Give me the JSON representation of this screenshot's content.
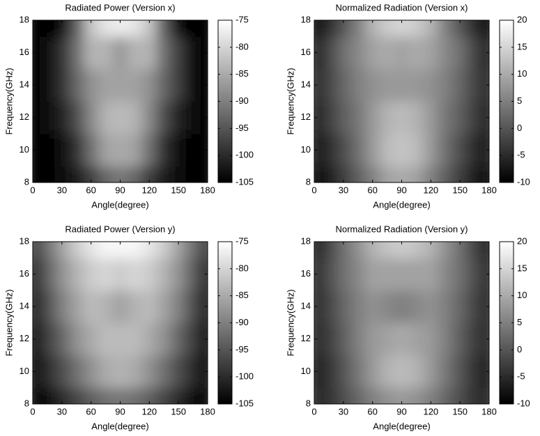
{
  "chart_data": [
    {
      "type": "heatmap",
      "title": "Radiated Power (Version x)",
      "xlabel": "Angle(degree)",
      "ylabel": "Frequency(GHz)",
      "x": [
        0,
        15,
        30,
        45,
        60,
        75,
        90,
        105,
        120,
        135,
        150,
        165,
        180
      ],
      "y": [
        8,
        10,
        12,
        14,
        16,
        18
      ],
      "z": [
        [
          -105,
          -105,
          -104,
          -102,
          -98,
          -93,
          -91,
          -93,
          -98,
          -102,
          -104,
          -105,
          -105
        ],
        [
          -105,
          -105,
          -103,
          -99,
          -92,
          -86,
          -85,
          -86,
          -92,
          -99,
          -103,
          -105,
          -105
        ],
        [
          -105,
          -104,
          -101,
          -96,
          -89,
          -84,
          -83,
          -84,
          -89,
          -96,
          -101,
          -104,
          -105
        ],
        [
          -105,
          -103,
          -99,
          -93,
          -88,
          -86,
          -86,
          -86,
          -88,
          -93,
          -98,
          -103,
          -105
        ],
        [
          -105,
          -103,
          -99,
          -92,
          -84,
          -84,
          -87,
          -84,
          -84,
          -92,
          -98,
          -103,
          -105
        ],
        [
          -105,
          -105,
          -103,
          -94,
          -82,
          -78,
          -77,
          -78,
          -82,
          -94,
          -103,
          -105,
          -105
        ]
      ],
      "xlim": [
        0,
        180
      ],
      "ylim": [
        8,
        18
      ],
      "xticks": [
        0,
        30,
        60,
        90,
        120,
        150,
        180
      ],
      "yticks": [
        8,
        10,
        12,
        14,
        16,
        18
      ],
      "clim": [
        -105,
        -75
      ],
      "cticks": [
        -105,
        -100,
        -95,
        -90,
        -85,
        -80,
        -75
      ],
      "colormap": "gray"
    },
    {
      "type": "heatmap",
      "title": "Normalized Radiation (Version x)",
      "xlabel": "Angle(degree)",
      "ylabel": "Frequency(GHz)",
      "x": [
        0,
        15,
        30,
        45,
        60,
        75,
        90,
        105,
        120,
        135,
        150,
        165,
        180
      ],
      "y": [
        8,
        10,
        12,
        14,
        16,
        18
      ],
      "z": [
        [
          -8,
          -7,
          -3,
          1,
          5,
          9,
          10,
          9,
          5,
          1,
          -3,
          -7,
          -8
        ],
        [
          -7,
          -5,
          -1,
          3,
          8,
          12,
          13,
          12,
          8,
          3,
          -1,
          -5,
          -7
        ],
        [
          -6,
          -3,
          1,
          4,
          8,
          11,
          12,
          11,
          8,
          4,
          1,
          -3,
          -6
        ],
        [
          -5,
          -2,
          2,
          5,
          7,
          8,
          8,
          8,
          7,
          5,
          2,
          -2,
          -5
        ],
        [
          -6,
          -2,
          3,
          6,
          9,
          10,
          9,
          10,
          9,
          6,
          3,
          -2,
          -6
        ],
        [
          -8,
          -5,
          0,
          5,
          11,
          14,
          15,
          14,
          11,
          5,
          0,
          -5,
          -8
        ]
      ],
      "xlim": [
        0,
        180
      ],
      "ylim": [
        8,
        18
      ],
      "xticks": [
        0,
        30,
        60,
        90,
        120,
        150,
        180
      ],
      "yticks": [
        8,
        10,
        12,
        14,
        16,
        18
      ],
      "clim": [
        -10,
        20
      ],
      "cticks": [
        -10,
        -5,
        0,
        5,
        10,
        15,
        20
      ],
      "colormap": "gray"
    },
    {
      "type": "heatmap",
      "title": "Radiated Power (Version y)",
      "xlabel": "Angle(degree)",
      "ylabel": "Frequency(GHz)",
      "x": [
        0,
        15,
        30,
        45,
        60,
        75,
        90,
        105,
        120,
        135,
        150,
        165,
        180
      ],
      "y": [
        8,
        10,
        12,
        14,
        16,
        18
      ],
      "z": [
        [
          -104,
          -103,
          -100,
          -97,
          -94,
          -92,
          -91,
          -92,
          -94,
          -97,
          -100,
          -103,
          -104
        ],
        [
          -103,
          -100,
          -96,
          -92,
          -88,
          -85,
          -84,
          -85,
          -88,
          -92,
          -96,
          -100,
          -103
        ],
        [
          -103,
          -98,
          -93,
          -88,
          -85,
          -83,
          -83,
          -83,
          -85,
          -88,
          -93,
          -98,
          -103
        ],
        [
          -102,
          -96,
          -90,
          -86,
          -83,
          -84,
          -86,
          -84,
          -83,
          -86,
          -90,
          -96,
          -102
        ],
        [
          -101,
          -94,
          -88,
          -84,
          -81,
          -80,
          -81,
          -80,
          -81,
          -84,
          -88,
          -94,
          -101
        ],
        [
          -98,
          -92,
          -86,
          -81,
          -78,
          -76,
          -76,
          -76,
          -78,
          -81,
          -86,
          -92,
          -98
        ]
      ],
      "xlim": [
        0,
        180
      ],
      "ylim": [
        8,
        18
      ],
      "xticks": [
        0,
        30,
        60,
        90,
        120,
        150,
        180
      ],
      "yticks": [
        8,
        10,
        12,
        14,
        16,
        18
      ],
      "clim": [
        -105,
        -75
      ],
      "cticks": [
        -105,
        -100,
        -95,
        -90,
        -85,
        -80,
        -75
      ],
      "colormap": "gray"
    },
    {
      "type": "heatmap",
      "title": "Normalized Radiation (Version y)",
      "xlabel": "Angle(degree)",
      "ylabel": "Frequency(GHz)",
      "x": [
        0,
        15,
        30,
        45,
        60,
        75,
        90,
        105,
        120,
        135,
        150,
        165,
        180
      ],
      "y": [
        8,
        10,
        12,
        14,
        16,
        18
      ],
      "z": [
        [
          -5,
          -4,
          -1,
          2,
          5,
          7,
          8,
          7,
          5,
          2,
          -1,
          -4,
          -5
        ],
        [
          -6,
          -4,
          0,
          4,
          8,
          11,
          12,
          11,
          8,
          4,
          0,
          -4,
          -6
        ],
        [
          -5,
          -3,
          1,
          5,
          8,
          9,
          10,
          9,
          8,
          5,
          1,
          -3,
          -5
        ],
        [
          -5,
          -2,
          2,
          5,
          7,
          6,
          5,
          6,
          7,
          5,
          2,
          -2,
          -5
        ],
        [
          -5,
          -1,
          3,
          6,
          9,
          9,
          9,
          9,
          9,
          6,
          3,
          -1,
          -5
        ],
        [
          -6,
          -2,
          3,
          7,
          11,
          13,
          14,
          13,
          11,
          7,
          3,
          -2,
          -6
        ]
      ],
      "xlim": [
        0,
        180
      ],
      "ylim": [
        8,
        18
      ],
      "xticks": [
        0,
        30,
        60,
        90,
        120,
        150,
        180
      ],
      "yticks": [
        8,
        10,
        12,
        14,
        16,
        18
      ],
      "clim": [
        -10,
        20
      ],
      "cticks": [
        -10,
        -5,
        0,
        5,
        10,
        15,
        20
      ],
      "colormap": "gray"
    }
  ]
}
